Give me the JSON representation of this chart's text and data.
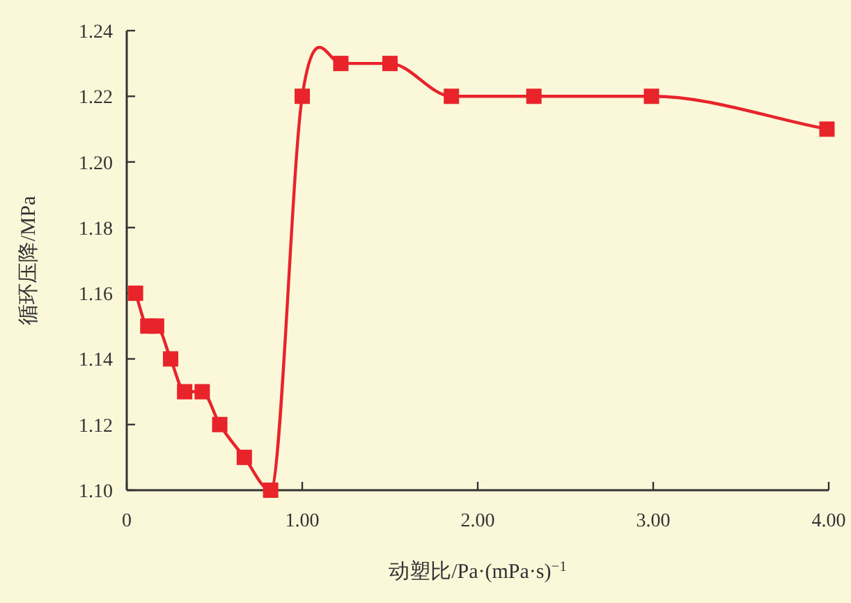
{
  "chart_data": {
    "type": "line",
    "xlabel": "动塑比/Pa·(mPa·s)$^{−1}$",
    "ylabel": "循环压降/MPa",
    "x": [
      0.05,
      0.12,
      0.17,
      0.25,
      0.33,
      0.43,
      0.53,
      0.67,
      0.82,
      1.0,
      1.22,
      1.5,
      1.85,
      2.32,
      2.99,
      3.99
    ],
    "series": [
      {
        "color": "#e8242a",
        "values": [
          1.16,
          1.15,
          1.15,
          1.14,
          1.13,
          1.13,
          1.12,
          1.11,
          1.1,
          1.22,
          1.23,
          1.23,
          1.22,
          1.22,
          1.22,
          1.21
        ]
      }
    ],
    "xlim": [
      0,
      4
    ],
    "ylim": [
      1.1,
      1.24
    ],
    "xticks": [
      0,
      {
        "value": 1,
        "label": "1.00"
      },
      {
        "value": 2,
        "label": "2.00"
      },
      {
        "value": 3,
        "label": "3.00"
      },
      {
        "value": 4,
        "label": "4.00"
      }
    ],
    "yticks": [
      {
        "value": 1.1,
        "label": "1.10"
      },
      {
        "value": 1.12,
        "label": "1.12"
      },
      {
        "value": 1.14,
        "label": "1.14"
      },
      {
        "value": 1.16,
        "label": "1.16"
      },
      {
        "value": 1.18,
        "label": "1.18"
      },
      {
        "value": 1.2,
        "label": "1.20"
      },
      {
        "value": 1.22,
        "label": "1.22"
      },
      {
        "value": 1.24,
        "label": "1.24"
      }
    ],
    "marker": "square",
    "line_style": "solid"
  }
}
